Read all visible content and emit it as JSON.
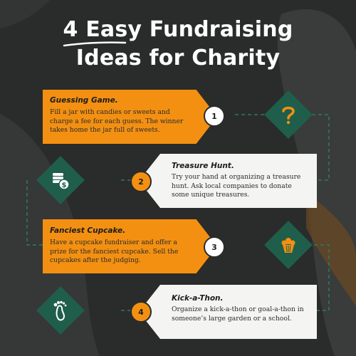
{
  "title": {
    "line1": "4 Easy Fundraising",
    "line2": "Ideas for Charity"
  },
  "ideas": [
    {
      "number": "1",
      "title": "Guessing Game.",
      "description": "Fill a jar with candies or sweets and charge a fee for each guess. The winner takes home the jar full of sweets.",
      "icon": "question-mark-icon"
    },
    {
      "number": "2",
      "title": "Treasure Hunt.",
      "description": "Try your hand at organizing a treasure hunt. Ask local companies to donate some unique treasures.",
      "icon": "coins-dollar-icon"
    },
    {
      "number": "3",
      "title": "Fanciest Cupcake.",
      "description": "Have a cupcake fundraiser and offer a prize for the fanciest cupcake. Sell the cupcakes after the judging.",
      "icon": "cupcake-icon"
    },
    {
      "number": "4",
      "title": "Kick-a-Thon.",
      "description": "Organize a kick-a-thon or goal-a-thon in someone’s large garden or a school.",
      "icon": "footprint-icon"
    }
  ],
  "colors": {
    "background": "#2a2b2b",
    "orange": "#f39012",
    "green": "#1f5e4b",
    "card_light": "#f4f4f2"
  }
}
